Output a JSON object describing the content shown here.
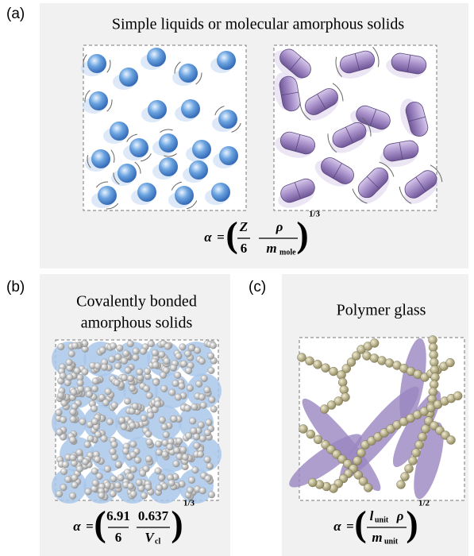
{
  "panels": [
    {
      "label": "(a)",
      "title": [
        "Simple liquids or molecular amorphous solids"
      ],
      "formula": {
        "alpha": "α",
        "equals": "=",
        "open": "(",
        "close": ")",
        "n1": "Z",
        "d1": "6",
        "n2": "ρ",
        "d2": "m",
        "d2_sub": "mole",
        "exponent": "1/3"
      }
    },
    {
      "label": "(b)",
      "title": [
        "Covalently bonded",
        "amorphous solids"
      ],
      "formula": {
        "alpha": "α",
        "equals": "=",
        "open": "(",
        "close": ")",
        "n1": "6.91",
        "d1": "6",
        "n2": "0.637",
        "d2": "V",
        "d2_sub": "cl",
        "exponent": "1/3"
      }
    },
    {
      "label": "(c)",
      "title": [
        "Polymer glass"
      ],
      "formula": {
        "alpha": "α",
        "equals": "=",
        "open": "(",
        "close": ")",
        "n1": "l",
        "n1_sub": "unit",
        "n1b": "ρ",
        "d1": "m",
        "d1_sub": "unit",
        "exponent": "1/2"
      }
    }
  ]
}
